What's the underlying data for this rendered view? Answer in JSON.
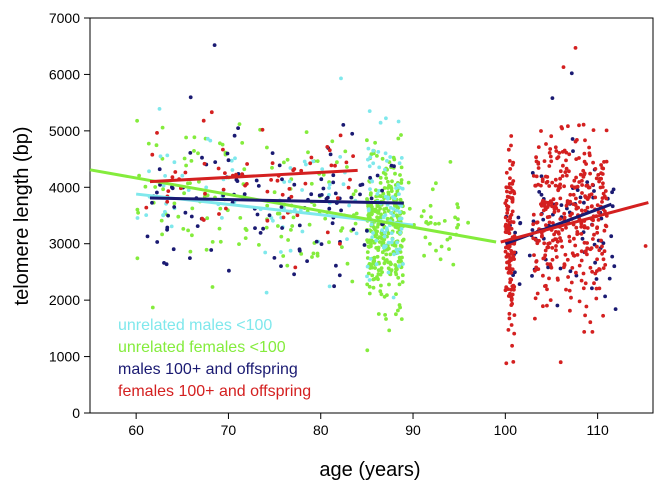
{
  "chart_data": {
    "type": "scatter",
    "title": "",
    "xlabel": "age (years)",
    "ylabel": "telomere length (bp)",
    "xlim": [
      55,
      116
    ],
    "ylim": [
      0,
      7000
    ],
    "x_ticks": [
      60,
      70,
      80,
      90,
      100,
      110
    ],
    "y_ticks": [
      0,
      1000,
      2000,
      3000,
      4000,
      5000,
      6000,
      7000
    ],
    "legend_position": "bottom-left",
    "series": [
      {
        "name": "unrelated males <100",
        "color": "#7fe8ec",
        "clusters": [
          {
            "x_range": [
              60,
              84
            ],
            "y_mean": 3700,
            "y_sd": 550,
            "n": 70
          },
          {
            "x_range": [
              85,
              89
            ],
            "y_mean": 3600,
            "y_sd": 650,
            "n": 90
          }
        ],
        "outliers": [
          {
            "x": 82.2,
            "y": 5930
          },
          {
            "x": 85.3,
            "y": 5350
          }
        ],
        "trend": {
          "x": [
            60,
            90
          ],
          "y": [
            3880,
            3330
          ]
        }
      },
      {
        "name": "unrelated females <100",
        "color": "#84ec3c",
        "clusters": [
          {
            "x_range": [
              60,
              84
            ],
            "y_mean": 3800,
            "y_sd": 650,
            "n": 130
          },
          {
            "x_range": [
              85,
              89
            ],
            "y_mean": 3200,
            "y_sd": 600,
            "n": 330
          },
          {
            "x_range": [
              89.5,
              96
            ],
            "y_mean": 3400,
            "y_sd": 550,
            "n": 35
          }
        ],
        "outliers": [
          {
            "x": 61.8,
            "y": 1870
          },
          {
            "x": 71.2,
            "y": 5120
          }
        ],
        "trend": {
          "x": [
            55,
            99
          ],
          "y": [
            4310,
            3030
          ]
        }
      },
      {
        "name": "males  100+ and offspring",
        "color": "#1a1a72",
        "clusters": [
          {
            "x_range": [
              61,
              88
            ],
            "y_mean": 3700,
            "y_sd": 600,
            "n": 110
          },
          {
            "x_range": [
              100,
              112
            ],
            "y_mean": 3200,
            "y_sd": 650,
            "n": 80
          }
        ],
        "outliers": [
          {
            "x": 68.5,
            "y": 6520
          },
          {
            "x": 107.2,
            "y": 6020
          },
          {
            "x": 105.1,
            "y": 5580
          }
        ],
        "trend_segments": [
          {
            "x": [
              61.5,
              89
            ],
            "y": [
              3810,
              3720
            ]
          },
          {
            "x": [
              100,
              111.5
            ],
            "y": [
              3000,
              3700
            ]
          }
        ]
      },
      {
        "name": "females 100+ and offspring",
        "color": "#d42020",
        "clusters": [
          {
            "x_range": [
              61,
              84
            ],
            "y_mean": 4150,
            "y_sd": 550,
            "n": 60
          },
          {
            "x_range": [
              100,
              101
            ],
            "y_mean": 3000,
            "y_sd": 800,
            "n": 130
          },
          {
            "x_range": [
              103,
              111
            ],
            "y_mean": 3400,
            "y_sd": 750,
            "n": 360
          }
        ],
        "outliers": [
          {
            "x": 107.6,
            "y": 6470
          },
          {
            "x": 106.3,
            "y": 6130
          },
          {
            "x": 100.1,
            "y": 880
          },
          {
            "x": 106.0,
            "y": 900
          },
          {
            "x": 115.2,
            "y": 2960
          },
          {
            "x": 68.2,
            "y": 5330
          }
        ],
        "trend_segments": [
          {
            "x": [
              61.5,
              84
            ],
            "y": [
              4100,
              4300
            ]
          },
          {
            "x": [
              99.5,
              115.5
            ],
            "y": [
              3030,
              3730
            ]
          }
        ]
      }
    ]
  }
}
